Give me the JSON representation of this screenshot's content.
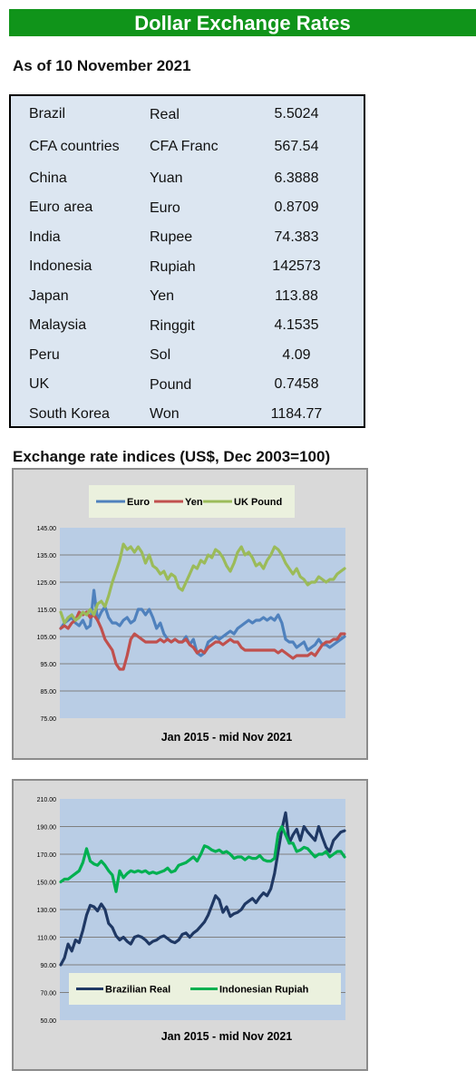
{
  "banner": {
    "title": "Dollar Exchange Rates"
  },
  "as_of": "As of 10 November 2021",
  "rates": [
    {
      "country": "Brazil",
      "currency": "Real",
      "value": "5.5024"
    },
    {
      "country": "CFA countries",
      "currency": "CFA Franc",
      "value": "567.54"
    },
    {
      "country": "China",
      "currency": "Yuan",
      "value": "6.3888"
    },
    {
      "country": "Euro area",
      "currency": "Euro",
      "value": "0.8709"
    },
    {
      "country": "India",
      "currency": "Rupee",
      "value": "74.383"
    },
    {
      "country": "Indonesia",
      "currency": "Rupiah",
      "value": "142573"
    },
    {
      "country": "Japan",
      "currency": "Yen",
      "value": "113.88"
    },
    {
      "country": "Malaysia",
      "currency": "Ringgit",
      "value": "4.1535"
    },
    {
      "country": "Peru",
      "currency": "Sol",
      "value": "4.09"
    },
    {
      "country": "UK",
      "currency": "Pound",
      "value": "0.7458"
    },
    {
      "country": "South Korea",
      "currency": "Won",
      "value": "1184.77"
    }
  ],
  "indices_title": "Exchange rate indices (US$, Dec 2003=100)",
  "chart_data": [
    {
      "type": "line",
      "title": "",
      "xlabel": "Jan 2015 - mid Nov 2021",
      "ylabel": "",
      "ylim": [
        75,
        145
      ],
      "yticks": [
        "145.00",
        "135.00",
        "125.00",
        "115.00",
        "105.00",
        "95.00",
        "85.00",
        "75.00"
      ],
      "grid": true,
      "legend": "top",
      "series": [
        {
          "name": "Euro",
          "color": "#4f81bd",
          "values": [
            108,
            110,
            111,
            112,
            110,
            109,
            111,
            108,
            109,
            122,
            111,
            114,
            116,
            112,
            110,
            110,
            109,
            111,
            112,
            110,
            111,
            115,
            115,
            113,
            115,
            112,
            108,
            110,
            106,
            104,
            103,
            104,
            103,
            103,
            105,
            102,
            104,
            99,
            98,
            99,
            103,
            104,
            105,
            104,
            105,
            106,
            107,
            106,
            108,
            109,
            110,
            111,
            110,
            111,
            111,
            112,
            111,
            112,
            111,
            113,
            110,
            104,
            103,
            103,
            101,
            102,
            103,
            100,
            101,
            102,
            104,
            102,
            102,
            101,
            102,
            103,
            104,
            105
          ]
        },
        {
          "name": "Yen",
          "color": "#c0504d",
          "values": [
            108,
            109,
            108,
            110,
            111,
            114,
            113,
            114,
            112,
            113,
            111,
            108,
            104,
            102,
            100,
            95,
            93,
            93,
            98,
            104,
            106,
            105,
            104,
            103,
            103,
            103,
            103,
            104,
            103,
            104,
            103,
            104,
            103,
            103,
            104,
            102,
            101,
            99,
            100,
            99,
            101,
            102,
            103,
            103,
            102,
            103,
            104,
            103,
            103,
            101,
            100,
            100,
            100,
            100,
            100,
            100,
            100,
            100,
            100,
            99,
            100,
            99,
            98,
            97,
            98,
            98,
            98,
            98,
            99,
            98,
            100,
            102,
            103,
            103,
            104,
            104,
            106,
            106
          ]
        },
        {
          "name": "UK Pound",
          "color": "#9bbb59",
          "values": [
            114,
            110,
            112,
            113,
            111,
            112,
            114,
            113,
            115,
            113,
            117,
            118,
            116,
            120,
            125,
            129,
            133,
            139,
            137,
            138,
            136,
            138,
            136,
            132,
            135,
            131,
            130,
            128,
            129,
            126,
            128,
            127,
            123,
            122,
            125,
            128,
            131,
            130,
            133,
            132,
            135,
            134,
            137,
            136,
            134,
            131,
            129,
            132,
            136,
            138,
            135,
            136,
            134,
            131,
            132,
            130,
            133,
            135,
            138,
            137,
            135,
            132,
            130,
            128,
            130,
            127,
            126,
            124,
            125,
            125,
            127,
            126,
            125,
            126,
            126,
            128,
            129,
            130
          ]
        }
      ]
    },
    {
      "type": "line",
      "title": "",
      "xlabel": "Jan 2015 - mid Nov 2021",
      "ylabel": "",
      "ylim": [
        50,
        210
      ],
      "yticks": [
        "210.00",
        "190.00",
        "170.00",
        "150.00",
        "130.00",
        "110.00",
        "90.00",
        "70.00",
        "50.00"
      ],
      "grid": true,
      "legend": "bottom",
      "series": [
        {
          "name": "Brazilian Real",
          "color": "#1f3864",
          "values": [
            90,
            95,
            105,
            100,
            108,
            106,
            115,
            126,
            133,
            132,
            129,
            134,
            130,
            120,
            117,
            111,
            108,
            110,
            107,
            105,
            110,
            111,
            110,
            108,
            105,
            107,
            108,
            110,
            111,
            109,
            107,
            106,
            108,
            112,
            113,
            110,
            113,
            115,
            118,
            121,
            126,
            133,
            140,
            137,
            128,
            132,
            125,
            127,
            128,
            130,
            134,
            136,
            138,
            135,
            139,
            142,
            140,
            145,
            156,
            172,
            188,
            200,
            178,
            184,
            188,
            180,
            190,
            186,
            183,
            180,
            190,
            182,
            175,
            172,
            180,
            183,
            186,
            187
          ]
        },
        {
          "name": "Indonesian Rupiah",
          "color": "#00b050",
          "values": [
            150,
            152,
            152,
            154,
            156,
            158,
            164,
            174,
            165,
            163,
            162,
            165,
            162,
            158,
            155,
            143,
            158,
            153,
            156,
            158,
            157,
            158,
            157,
            158,
            156,
            157,
            156,
            157,
            158,
            160,
            157,
            158,
            162,
            163,
            164,
            166,
            168,
            165,
            170,
            176,
            175,
            173,
            172,
            173,
            171,
            172,
            170,
            167,
            168,
            168,
            166,
            168,
            167,
            167,
            169,
            166,
            165,
            165,
            167,
            185,
            190,
            184,
            178,
            178,
            172,
            173,
            175,
            174,
            171,
            168,
            170,
            170,
            172,
            168,
            170,
            172,
            172,
            168
          ]
        }
      ]
    }
  ]
}
